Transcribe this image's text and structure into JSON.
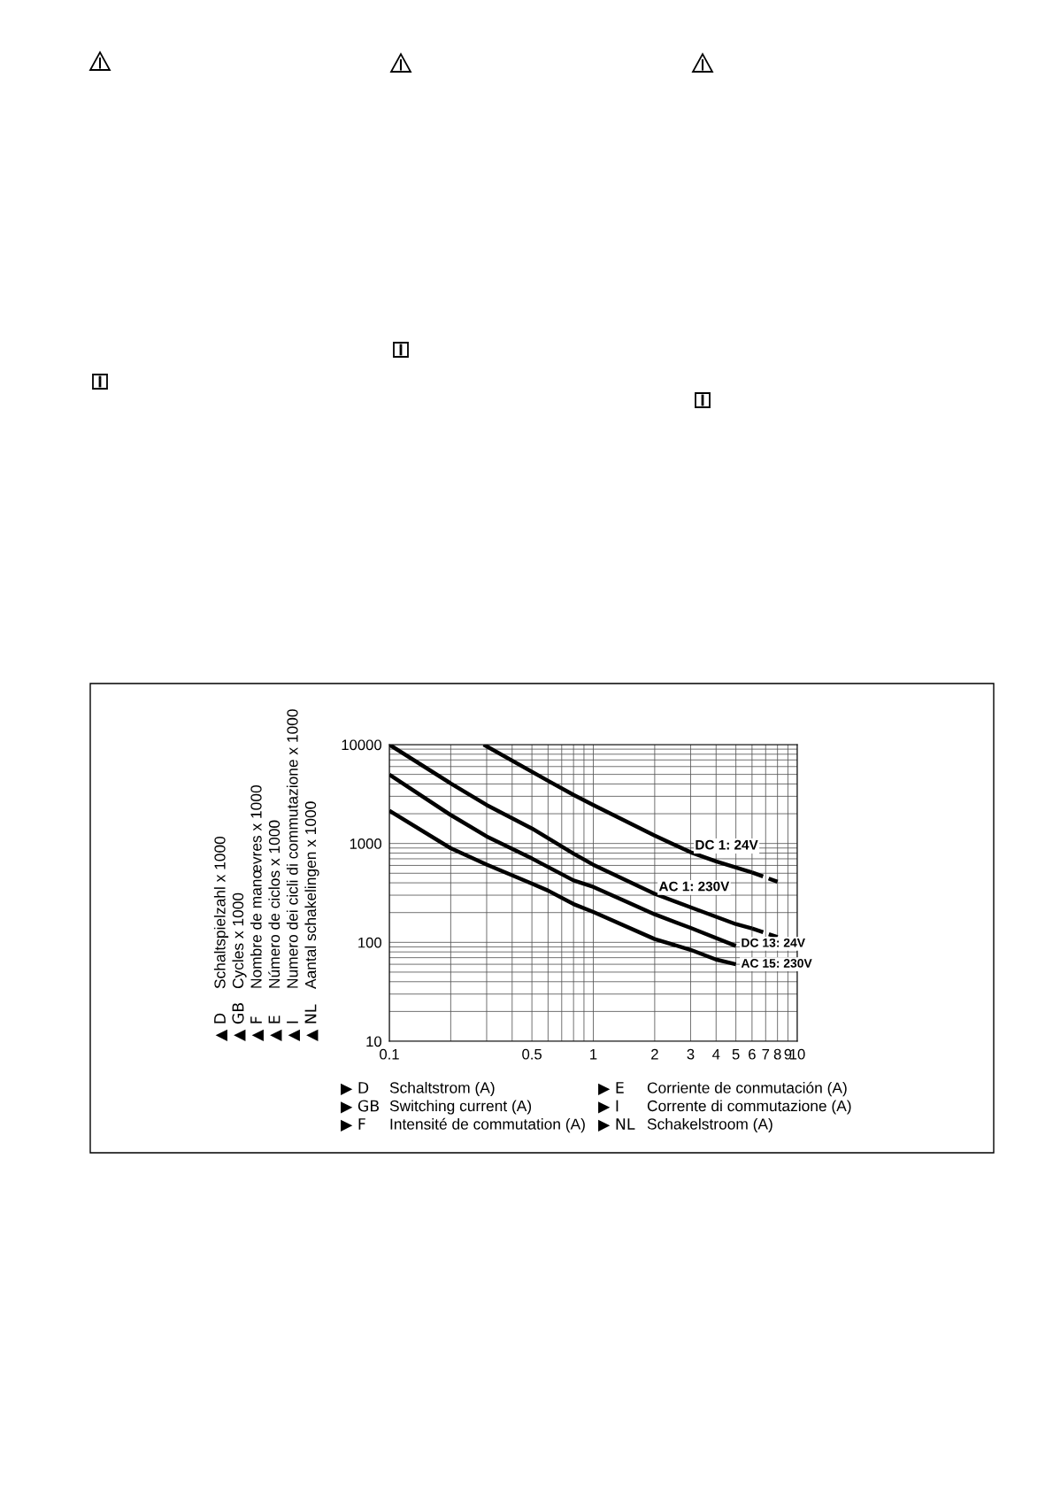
{
  "chart_data": {
    "type": "line",
    "ylabel": "▲ D\tSchaltspielzahl x 1000\n▲ GB\tCycles x 1000\n▲ F\tNombre de manœvres x 1000\n▲ E\tNúmero de ciclos x 1000\n▲ I\tNumero dei cicli di commutazione x 1000\n▲ NL\tAantal schakelingen x 1000",
    "xlabel": "▶ D\tSchaltstrom (A)\n▶ GB\tSwitching current (A)\n▶ F\tIntensité de commutation (A)\n▶ E\tCorriente de conmutación (A)\n▶ I\tCorrente di commutazione (A)\n▶ NL\tSchakelstroom (A)",
    "log": "xy",
    "grid": true,
    "marker": "none",
    "xlim": [
      0.1,
      10
    ],
    "ylim": [
      10,
      10000
    ],
    "xticks": [
      0.1,
      {
        "value": 0.2,
        "label": null
      },
      {
        "value": 0.3,
        "label": null
      },
      {
        "value": 0.4,
        "label": null
      },
      0.5,
      {
        "value": 0.6,
        "label": null
      },
      {
        "value": 0.7,
        "label": null
      },
      {
        "value": 0.8,
        "label": null
      },
      {
        "value": 0.9,
        "label": null
      },
      1,
      2,
      3,
      4,
      5,
      6,
      7,
      8,
      9,
      10
    ],
    "yticks": [
      10,
      {
        "value": 20,
        "label": null
      },
      {
        "value": 30,
        "label": null
      },
      {
        "value": 40,
        "label": null
      },
      {
        "value": 50,
        "label": null
      },
      {
        "value": 60,
        "label": null
      },
      {
        "value": 70,
        "label": null
      },
      {
        "value": 80,
        "label": null
      },
      {
        "value": 90,
        "label": null
      },
      100,
      {
        "value": 200,
        "label": null
      },
      {
        "value": 300,
        "label": null
      },
      {
        "value": 400,
        "label": null
      },
      {
        "value": 500,
        "label": null
      },
      {
        "value": 600,
        "label": null
      },
      {
        "value": 700,
        "label": null
      },
      {
        "value": 800,
        "label": null
      },
      {
        "value": 900,
        "label": null
      },
      1000,
      {
        "value": 2000,
        "label": null
      },
      {
        "value": 3000,
        "label": null
      },
      {
        "value": 4000,
        "label": null
      },
      {
        "value": 5000,
        "label": null
      },
      {
        "value": 6000,
        "label": null
      },
      {
        "value": 7000,
        "label": null
      },
      {
        "value": 8000,
        "label": null
      },
      {
        "value": 9000,
        "label": null
      },
      10000
    ],
    "series": [
      {
        "name": "DC 1: 24V",
        "color": "#000000",
        "line_style": "solid",
        "x": [
          0.29,
          0.6,
          0.8,
          1,
          2,
          3,
          4,
          6
        ],
        "values": [
          10000,
          4300,
          3100,
          2450,
          1200,
          815,
          660,
          510
        ]
      },
      {
        "color": "#000000",
        "line_style": "dashed",
        "x": [
          6,
          8
        ],
        "values": [
          510,
          410
        ]
      },
      {
        "name": "AC 1: 230V",
        "color": "#000000",
        "line_style": "solid",
        "x": [
          0.1,
          0.2,
          0.3,
          0.5,
          0.8,
          1,
          2,
          3,
          5,
          6
        ],
        "values": [
          10000,
          4050,
          2450,
          1420,
          790,
          610,
          310,
          226,
          153,
          138
        ]
      },
      {
        "color": "#000000",
        "line_style": "dashed",
        "x": [
          6,
          8
        ],
        "values": [
          138,
          113
        ]
      },
      {
        "name": "DC 13: 24V",
        "color": "#000000",
        "line_style": "solid",
        "x": [
          0.1,
          0.2,
          0.3,
          0.5,
          0.8,
          1,
          2,
          3,
          5
        ],
        "values": [
          4970,
          1940,
          1180,
          705,
          423,
          364,
          192,
          140,
          92
        ]
      },
      {
        "name": "AC 15: 230V",
        "color": "#000000",
        "line_style": "solid",
        "x": [
          0.1,
          0.2,
          0.3,
          0.5,
          0.6,
          0.8,
          1,
          2,
          3,
          4,
          5
        ],
        "values": [
          2140,
          896,
          611,
          393,
          334,
          244,
          203,
          108,
          84,
          67,
          60
        ]
      }
    ]
  }
}
